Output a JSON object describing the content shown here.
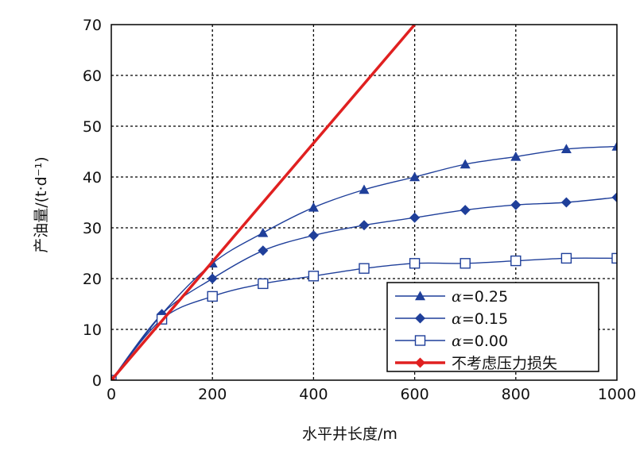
{
  "chart_data": {
    "type": "line",
    "xlabel": "水平井长度/m",
    "ylabel": "产油量/(t·d⁻¹)",
    "xlim": [
      0,
      1000
    ],
    "ylim": [
      0,
      70
    ],
    "xticks": [
      "0",
      "200",
      "400",
      "600",
      "800",
      "1000"
    ],
    "yticks": [
      "0",
      "10",
      "20",
      "30",
      "40",
      "50",
      "60",
      "70"
    ],
    "grid": true,
    "legend_position": "bottom-right",
    "series": [
      {
        "name": "α=0.25",
        "legend_symbol": "α",
        "legend_value": "=0.25",
        "marker": "triangle",
        "color": "#1f3f9a",
        "x": [
          0,
          100,
          200,
          300,
          400,
          500,
          600,
          700,
          800,
          900,
          1000
        ],
        "y": [
          0,
          13,
          23,
          29,
          34,
          37.5,
          40,
          42.5,
          44,
          45.5,
          46
        ]
      },
      {
        "name": "α=0.15",
        "legend_symbol": "α",
        "legend_value": "=0.15",
        "marker": "diamond",
        "color": "#1f3f9a",
        "x": [
          0,
          100,
          200,
          300,
          400,
          500,
          600,
          700,
          800,
          900,
          1000
        ],
        "y": [
          0,
          13,
          20,
          25.5,
          28.5,
          30.5,
          32,
          33.5,
          34.5,
          35,
          36
        ]
      },
      {
        "name": "α=0.00",
        "legend_symbol": "α",
        "legend_value": "=0.00",
        "marker": "square-open",
        "color": "#1f3f9a",
        "x": [
          0,
          100,
          200,
          300,
          400,
          500,
          600,
          700,
          800,
          900,
          1000
        ],
        "y": [
          0,
          12,
          16.5,
          19,
          20.5,
          22,
          23,
          23,
          23.5,
          24,
          24
        ]
      },
      {
        "name": "不考虑压力损失",
        "legend_label": "不考虑压力损失",
        "marker": "diamond",
        "color": "#e02020",
        "x": [
          0,
          600
        ],
        "y": [
          0,
          70
        ]
      }
    ]
  }
}
